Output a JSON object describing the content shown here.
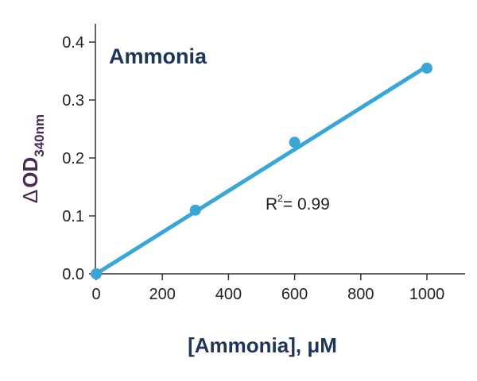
{
  "chart_data": {
    "type": "scatter",
    "title": "Ammonia",
    "xlabel": "[Ammonia], μM",
    "ylabel": {
      "delta": "Δ",
      "main": "OD",
      "subscript": "340nm"
    },
    "xlim": [
      -10,
      1080
    ],
    "ylim": [
      0,
      0.43
    ],
    "xticks": [
      0,
      200,
      400,
      600,
      800,
      1000
    ],
    "yticks": [
      0.0,
      0.1,
      0.2,
      0.3,
      0.4
    ],
    "xtick_labels": [
      "0",
      "200",
      "400",
      "600",
      "800",
      "1000"
    ],
    "ytick_labels": [
      "0.0",
      "0.1",
      "0.2",
      "0.3",
      "0.4"
    ],
    "series": [
      {
        "x": [
          0,
          300,
          600,
          1000
        ],
        "y": [
          0.0,
          0.11,
          0.227,
          0.355
        ]
      }
    ],
    "fit_line": {
      "x": [
        0,
        1000
      ],
      "y": [
        0.0,
        0.358
      ]
    },
    "annotation": {
      "r": "R",
      "superscript": "2",
      "value": "= 0.99"
    },
    "grid": false,
    "color": "#3aa6d8"
  }
}
